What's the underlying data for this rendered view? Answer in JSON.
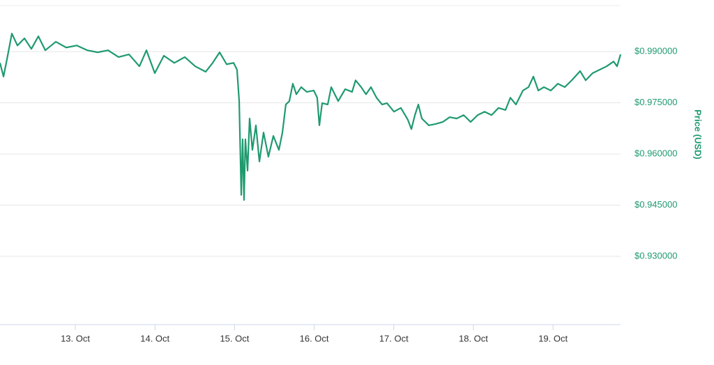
{
  "chart_data": {
    "type": "line",
    "y_axis_label": "Price (USD)",
    "xlim": [
      12.054,
      19.848
    ],
    "xticks": [
      {
        "value": 13,
        "label": "13. Oct"
      },
      {
        "value": 14,
        "label": "14. Oct"
      },
      {
        "value": 15,
        "label": "15. Oct"
      },
      {
        "value": 16,
        "label": "16. Oct"
      },
      {
        "value": 17,
        "label": "17. Oct"
      },
      {
        "value": 18,
        "label": "18. Oct"
      },
      {
        "value": 19,
        "label": "19. Oct"
      }
    ],
    "ylim": [
      0.91,
      1.0035
    ],
    "yticks": [
      {
        "value": 0.93,
        "label": "$0.930000"
      },
      {
        "value": 0.945,
        "label": "$0.945000"
      },
      {
        "value": 0.96,
        "label": "$0.960000"
      },
      {
        "value": 0.975,
        "label": "$0.975000"
      },
      {
        "value": 0.99,
        "label": "$0.990000"
      }
    ],
    "grid": true,
    "color": "#1f9a6e",
    "x": [
      12.054,
      12.098,
      12.142,
      12.203,
      12.273,
      12.361,
      12.448,
      12.536,
      12.623,
      12.755,
      12.886,
      13.017,
      13.149,
      13.28,
      13.411,
      13.543,
      13.674,
      13.805,
      13.893,
      13.998,
      14.112,
      14.243,
      14.375,
      14.506,
      14.637,
      14.725,
      14.812,
      14.9,
      14.988,
      15.031,
      15.058,
      15.084,
      15.101,
      15.119,
      15.136,
      15.163,
      15.189,
      15.224,
      15.268,
      15.312,
      15.364,
      15.425,
      15.487,
      15.557,
      15.601,
      15.644,
      15.688,
      15.732,
      15.776,
      15.837,
      15.907,
      15.995,
      16.038,
      16.065,
      16.1,
      16.17,
      16.214,
      16.301,
      16.389,
      16.476,
      16.52,
      16.59,
      16.651,
      16.713,
      16.783,
      16.853,
      16.914,
      17.002,
      17.089,
      17.177,
      17.221,
      17.265,
      17.308,
      17.352,
      17.44,
      17.527,
      17.615,
      17.702,
      17.79,
      17.877,
      17.965,
      18.053,
      18.14,
      18.228,
      18.315,
      18.403,
      18.464,
      18.534,
      18.622,
      18.692,
      18.753,
      18.815,
      18.885,
      18.972,
      19.06,
      19.147,
      19.235,
      19.34,
      19.41,
      19.497,
      19.585,
      19.673,
      19.76,
      19.804,
      19.848
    ],
    "values": [
      0.9867,
      0.9827,
      0.9878,
      0.9953,
      0.9918,
      0.9939,
      0.9908,
      0.9945,
      0.9904,
      0.9929,
      0.9912,
      0.9918,
      0.9904,
      0.9898,
      0.9904,
      0.9884,
      0.9892,
      0.9857,
      0.9904,
      0.9837,
      0.9888,
      0.9867,
      0.9884,
      0.9857,
      0.9841,
      0.9867,
      0.9898,
      0.9863,
      0.9867,
      0.9847,
      0.9755,
      0.948,
      0.9643,
      0.9465,
      0.9643,
      0.9551,
      0.9704,
      0.9612,
      0.9684,
      0.9578,
      0.9663,
      0.9592,
      0.9653,
      0.9612,
      0.9663,
      0.9745,
      0.9755,
      0.9806,
      0.9775,
      0.9796,
      0.9782,
      0.9786,
      0.9765,
      0.9684,
      0.9749,
      0.9745,
      0.9796,
      0.9755,
      0.979,
      0.9782,
      0.9816,
      0.9796,
      0.9775,
      0.9796,
      0.9765,
      0.9745,
      0.9749,
      0.9724,
      0.9735,
      0.97,
      0.9673,
      0.9714,
      0.9745,
      0.9704,
      0.9684,
      0.9688,
      0.9694,
      0.9708,
      0.9704,
      0.9714,
      0.9694,
      0.9714,
      0.9724,
      0.9714,
      0.9735,
      0.9729,
      0.9765,
      0.9745,
      0.9786,
      0.9796,
      0.9827,
      0.9786,
      0.9796,
      0.9786,
      0.9806,
      0.9796,
      0.9816,
      0.9843,
      0.9816,
      0.9837,
      0.9847,
      0.9857,
      0.9871,
      0.9857,
      0.9892
    ]
  }
}
